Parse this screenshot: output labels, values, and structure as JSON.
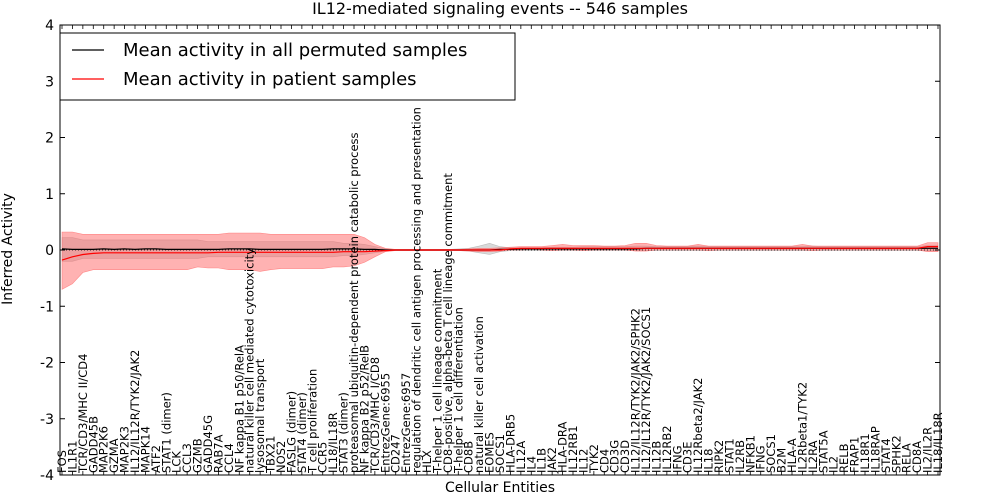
{
  "chart_data": {
    "type": "line",
    "title": "IL12-mediated signaling events -- 546 samples",
    "xlabel": "Cellular Entities",
    "ylabel": "Inferred Activity",
    "ylim": [
      -4,
      4
    ],
    "yticks": [
      -4,
      -3,
      -2,
      -1,
      0,
      1,
      2,
      3,
      4
    ],
    "grid": false,
    "legend_position": "top-left",
    "reference_line": 0,
    "categories": [
      "FOS",
      "IL1R1",
      "TCR/CD3/MHC II/CD4",
      "GADD45B",
      "MAP2K6",
      "GZMA",
      "MAP2K3",
      "IL12/IL12R/TYK2/JAK2",
      "MAPK14",
      "ATF2",
      "STAT1 (dimer)",
      "LCK",
      "CCL3",
      "GZMB",
      "GADD45G",
      "RAB7A",
      "CCL4",
      "NF kappa B1 p50/RelA",
      "natural killer cell mediated cytotoxicity",
      "lysosomal transport",
      "TBX21",
      "NOS2",
      "FASLG (dimer)",
      "STAT4 (dimer)",
      "T cell proliferation",
      "CCR5",
      "IL18/IL18R",
      "STAT3 (dimer)",
      "proteasomal ubiquitin-dependent protein catabolic process",
      "NF kappa B2 p52/RelB",
      "TCR/CD3/MHC I/CD8",
      "EntrezGene:6955",
      "CD247",
      "EntrezGene:6957",
      "regulation of dendritic cell antigen processing and presentation",
      "HLX",
      "T-helper 1 cell lineage commitment",
      "CD8-positive, alpha-beta T cell lineage commitment",
      "T-helper 1 cell differentiation",
      "CD8B",
      "natural killer cell activation",
      "EOMES",
      "SOCS1",
      "HLA-DRB5",
      "IL12A",
      "IL4",
      "IL1B",
      "JAK2",
      "HLA-DRA",
      "IL12RB1",
      "IL12",
      "TYK2",
      "CD4",
      "CD3G",
      "CD3D",
      "IL12/IL12R/TYK2/JAK2/SPHK2",
      "IL12/IL12R/TYK2/JAK2/SOCS1",
      "IL12B",
      "IL12RB2",
      "IFNG",
      "CD3E",
      "IL12Rbeta2/JAK2",
      "IL18",
      "RIPK2",
      "STAT1",
      "IL2RB",
      "NFKB1",
      "IFNG",
      "SOCS1",
      "B2M",
      "HLA-A",
      "IL2Rbeta1/TYK2",
      "IL2RA",
      "STAT5A",
      "IL2",
      "RELB",
      "FRAP1",
      "IL18R1",
      "IL18RAP",
      "STAT4",
      "SPHK2",
      "RELA",
      "CD8A",
      "IL2/IL2R",
      "IL18/IL18R"
    ],
    "series": [
      {
        "name": "Mean activity in all permuted samples",
        "color": "#000000",
        "values": [
          0.02,
          0.01,
          0.01,
          0.01,
          0.02,
          0.01,
          0.02,
          0.01,
          0.02,
          0.02,
          0.01,
          0.01,
          0.01,
          0.01,
          0.01,
          0.01,
          0.02,
          0.02,
          0.02,
          0.01,
          0.01,
          0.01,
          0.01,
          0.01,
          0.01,
          0.01,
          0.02,
          0.02,
          0.02,
          0.01,
          0.01,
          0.0,
          0.0,
          0.0,
          0.0,
          0.0,
          0.0,
          0.0,
          0.0,
          0.0,
          0.0,
          0.0,
          0.01,
          0.01,
          0.02,
          0.02,
          0.02,
          0.02,
          0.02,
          0.02,
          0.02,
          0.02,
          0.02,
          0.02,
          0.02,
          0.02,
          0.03,
          0.03,
          0.03,
          0.03,
          0.03,
          0.03,
          0.03,
          0.03,
          0.03,
          0.03,
          0.03,
          0.03,
          0.03,
          0.03,
          0.03,
          0.03,
          0.03,
          0.03,
          0.03,
          0.03,
          0.03,
          0.03,
          0.03,
          0.03,
          0.03,
          0.03,
          0.03,
          0.03,
          0.03
        ]
      },
      {
        "name": "Mean activity in patient samples",
        "color": "#ff0000",
        "values": [
          -0.18,
          -0.12,
          -0.08,
          -0.06,
          -0.05,
          -0.05,
          -0.05,
          -0.05,
          -0.05,
          -0.05,
          -0.05,
          -0.05,
          -0.05,
          -0.05,
          -0.05,
          -0.04,
          -0.04,
          -0.04,
          -0.04,
          -0.04,
          -0.04,
          -0.04,
          -0.04,
          -0.04,
          -0.04,
          -0.04,
          -0.04,
          -0.03,
          -0.03,
          -0.03,
          -0.02,
          -0.01,
          0.0,
          0.0,
          0.0,
          0.0,
          0.0,
          0.0,
          0.0,
          0.0,
          0.0,
          0.0,
          0.0,
          0.02,
          0.03,
          0.03,
          0.03,
          0.03,
          0.03,
          0.03,
          0.03,
          0.03,
          0.03,
          0.03,
          0.03,
          0.03,
          0.03,
          0.03,
          0.03,
          0.03,
          0.03,
          0.03,
          0.03,
          0.03,
          0.03,
          0.03,
          0.03,
          0.03,
          0.03,
          0.03,
          0.03,
          0.03,
          0.03,
          0.03,
          0.03,
          0.03,
          0.03,
          0.03,
          0.03,
          0.03,
          0.03,
          0.03,
          0.03,
          0.06,
          0.06
        ]
      }
    ],
    "bands": [
      {
        "name": "permuted spread",
        "color": "#aaaaaa",
        "opacity": 0.45,
        "lower": [
          -0.2,
          -0.2,
          -0.15,
          -0.15,
          -0.15,
          -0.15,
          -0.15,
          -0.15,
          -0.15,
          -0.15,
          -0.15,
          -0.15,
          -0.15,
          -0.15,
          -0.12,
          -0.12,
          -0.12,
          -0.12,
          -0.12,
          -0.12,
          -0.12,
          -0.12,
          -0.12,
          -0.12,
          -0.12,
          -0.12,
          -0.12,
          -0.1,
          -0.1,
          -0.08,
          -0.05,
          -0.02,
          -0.01,
          -0.01,
          -0.01,
          -0.01,
          -0.01,
          -0.01,
          -0.01,
          -0.02,
          -0.05,
          -0.08,
          -0.03,
          -0.01,
          -0.01,
          -0.01,
          -0.01,
          -0.01,
          -0.01,
          -0.01,
          -0.01,
          -0.01,
          -0.01,
          -0.01,
          -0.01,
          -0.01,
          -0.01,
          -0.01,
          -0.01,
          -0.01,
          -0.01,
          -0.01,
          -0.01,
          -0.01,
          -0.01,
          -0.01,
          -0.01,
          -0.01,
          -0.01,
          -0.01,
          -0.01,
          -0.01,
          -0.01,
          -0.01,
          -0.01,
          -0.01,
          -0.01,
          -0.01,
          -0.01,
          -0.01,
          -0.01,
          -0.01,
          -0.01,
          -0.01,
          -0.01
        ],
        "upper": [
          0.22,
          0.22,
          0.18,
          0.18,
          0.18,
          0.18,
          0.18,
          0.18,
          0.18,
          0.18,
          0.18,
          0.18,
          0.18,
          0.18,
          0.15,
          0.15,
          0.15,
          0.15,
          0.15,
          0.15,
          0.15,
          0.15,
          0.15,
          0.15,
          0.15,
          0.15,
          0.15,
          0.12,
          0.12,
          0.1,
          0.06,
          0.02,
          0.01,
          0.01,
          0.01,
          0.01,
          0.01,
          0.01,
          0.02,
          0.03,
          0.07,
          0.12,
          0.06,
          0.04,
          0.04,
          0.04,
          0.04,
          0.05,
          0.05,
          0.05,
          0.06,
          0.06,
          0.06,
          0.06,
          0.06,
          0.07,
          0.07,
          0.06,
          0.06,
          0.06,
          0.06,
          0.07,
          0.06,
          0.06,
          0.06,
          0.06,
          0.06,
          0.06,
          0.06,
          0.06,
          0.06,
          0.06,
          0.07,
          0.06,
          0.06,
          0.06,
          0.06,
          0.06,
          0.06,
          0.06,
          0.06,
          0.06,
          0.06,
          0.08,
          0.08
        ]
      },
      {
        "name": "patient spread",
        "color": "#ff6666",
        "opacity": 0.5,
        "lower": [
          -0.7,
          -0.6,
          -0.4,
          -0.35,
          -0.35,
          -0.35,
          -0.35,
          -0.35,
          -0.35,
          -0.35,
          -0.35,
          -0.35,
          -0.35,
          -0.3,
          -0.32,
          -0.32,
          -0.35,
          -0.35,
          -0.35,
          -0.38,
          -0.35,
          -0.33,
          -0.33,
          -0.33,
          -0.33,
          -0.33,
          -0.3,
          -0.3,
          -0.28,
          -0.22,
          -0.12,
          -0.03,
          -0.01,
          -0.01,
          -0.01,
          -0.01,
          -0.01,
          -0.01,
          -0.01,
          -0.02,
          -0.03,
          -0.03,
          -0.02,
          0.0,
          0.0,
          0.01,
          0.0,
          -0.01,
          0.0,
          0.0,
          -0.01,
          0.0,
          0.0,
          0.0,
          0.0,
          -0.02,
          -0.02,
          0.0,
          0.0,
          0.0,
          0.0,
          0.0,
          -0.01,
          0.0,
          0.0,
          0.0,
          0.0,
          0.0,
          0.0,
          0.0,
          0.0,
          0.0,
          -0.01,
          0.0,
          0.0,
          0.0,
          0.0,
          0.0,
          0.0,
          0.0,
          0.0,
          0.0,
          0.0,
          -0.03,
          -0.03
        ],
        "upper": [
          0.32,
          0.32,
          0.28,
          0.28,
          0.28,
          0.28,
          0.28,
          0.28,
          0.28,
          0.28,
          0.28,
          0.28,
          0.28,
          0.28,
          0.28,
          0.28,
          0.3,
          0.3,
          0.3,
          0.3,
          0.28,
          0.28,
          0.28,
          0.28,
          0.28,
          0.28,
          0.28,
          0.28,
          0.28,
          0.22,
          0.1,
          0.03,
          0.01,
          0.01,
          0.01,
          0.01,
          0.01,
          0.01,
          0.01,
          0.02,
          0.03,
          0.03,
          0.04,
          0.05,
          0.06,
          0.06,
          0.06,
          0.08,
          0.1,
          0.08,
          0.08,
          0.08,
          0.07,
          0.07,
          0.08,
          0.12,
          0.12,
          0.08,
          0.07,
          0.07,
          0.07,
          0.1,
          0.07,
          0.07,
          0.07,
          0.07,
          0.07,
          0.07,
          0.07,
          0.07,
          0.07,
          0.1,
          0.07,
          0.07,
          0.07,
          0.07,
          0.07,
          0.07,
          0.07,
          0.07,
          0.07,
          0.07,
          0.07,
          0.13,
          0.13
        ]
      }
    ]
  }
}
